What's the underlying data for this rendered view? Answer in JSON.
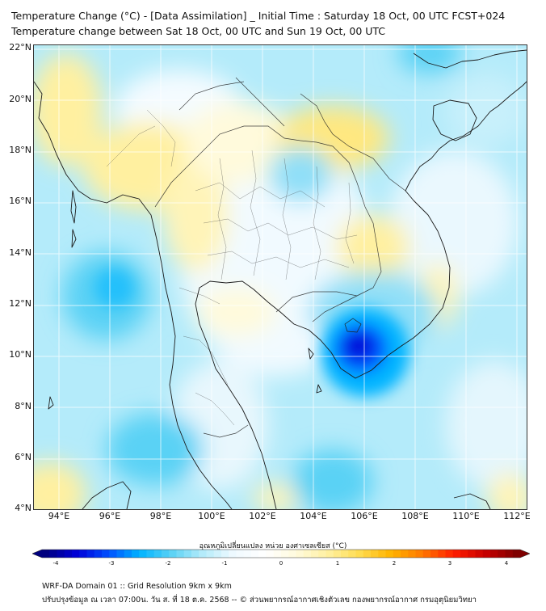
{
  "title_line1": "Temperature Change (°C) - [Data Assimilation] _ Initial Time : Saturday 18 Oct, 00 UTC FCST+024",
  "title_line2": "Temperature change between Sat 18 Oct, 00 UTC and Sun 19 Oct, 00 UTC",
  "lat_labels": [
    "22°N",
    "20°N",
    "18°N",
    "16°N",
    "14°N",
    "12°N",
    "10°N",
    "8°N",
    "6°N",
    "4°N"
  ],
  "lon_labels": [
    "94°E",
    "96°E",
    "98°E",
    "100°E",
    "102°E",
    "104°E",
    "106°E",
    "108°E",
    "110°E",
    "112°E"
  ],
  "colorbar": {
    "label": "อุณหภูมิเปลี่ยนแปลง หน่วย องศาเซลเซียส (°C)",
    "ticks": [
      "-4",
      "-3",
      "-2",
      "-1",
      "0",
      "1",
      "2",
      "3",
      "4"
    ],
    "range": [
      -4,
      4
    ],
    "colors": [
      "#00007f",
      "#0000d8",
      "#0050ff",
      "#00b4ff",
      "#5ad2f5",
      "#b4ebfa",
      "#f0faff",
      "#ffffff",
      "#fffadc",
      "#fff0a0",
      "#ffdc50",
      "#ffb400",
      "#ff7800",
      "#ff1e00",
      "#c80000",
      "#7f0000"
    ]
  },
  "footer_line1": "WRF-DA Domain 01 :: Grid Resolution 9km x 9km",
  "footer_line2": "ปรับปรุงข้อมูล ณ เวลา 07:00น. วัน ส. ที่ 18 ต.ค. 2568 -- © ส่วนพยากรณ์อากาศเชิงตัวเลข กองพยากรณ์อากาศ กรมอุตุนิยมวิทยา",
  "map_extent": {
    "lon": [
      93,
      112.4
    ],
    "lat": [
      4,
      22.2
    ]
  },
  "field": {
    "base_color": "#b4ebfa",
    "warm_color": "#fff0a0",
    "cool_color": "#00b4ff",
    "strong_cool_color": "#0000d8"
  }
}
